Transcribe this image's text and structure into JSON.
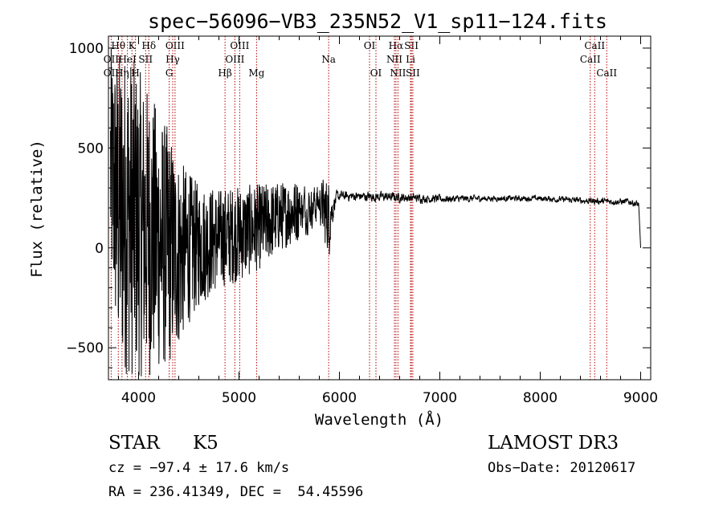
{
  "chart_data": {
    "type": "line",
    "title": "spec−56096−VB3_235N52_V1_sp11−124.fits",
    "xlabel": "Wavelength (Å)",
    "ylabel": "Flux (relative)",
    "xlim": [
      3700,
      9100
    ],
    "ylim": [
      -660,
      1060
    ],
    "x_ticks": [
      4000,
      5000,
      6000,
      7000,
      8000,
      9000
    ],
    "y_ticks": [
      -500,
      0,
      500,
      1000
    ],
    "y_tick_labels": [
      "−500",
      "0",
      "500",
      "1000"
    ],
    "grid": false,
    "series": [
      {
        "name": "flux",
        "envelope": [
          {
            "x": 3720,
            "lo": -200,
            "hi": 1000
          },
          {
            "x": 3800,
            "lo": -600,
            "hi": 1000
          },
          {
            "x": 3900,
            "lo": -650,
            "hi": 1000
          },
          {
            "x": 4000,
            "lo": -650,
            "hi": 900
          },
          {
            "x": 4100,
            "lo": -650,
            "hi": 800
          },
          {
            "x": 4200,
            "lo": -620,
            "hi": 700
          },
          {
            "x": 4300,
            "lo": -600,
            "hi": 600
          },
          {
            "x": 4400,
            "lo": -500,
            "hi": 450
          },
          {
            "x": 4500,
            "lo": -380,
            "hi": 380
          },
          {
            "x": 4600,
            "lo": -300,
            "hi": 320
          },
          {
            "x": 4800,
            "lo": -200,
            "hi": 300
          },
          {
            "x": 5000,
            "lo": -170,
            "hi": 310
          },
          {
            "x": 5200,
            "lo": -110,
            "hi": 320
          },
          {
            "x": 5400,
            "lo": -20,
            "hi": 330
          },
          {
            "x": 5600,
            "lo": 40,
            "hi": 340
          },
          {
            "x": 5800,
            "lo": 100,
            "hi": 360
          },
          {
            "x": 5900,
            "lo": -40,
            "hi": 340
          },
          {
            "x": 5950,
            "lo": 180,
            "hi": 290
          },
          {
            "x": 6000,
            "lo": 230,
            "hi": 290
          },
          {
            "x": 6500,
            "lo": 225,
            "hi": 285
          },
          {
            "x": 7000,
            "lo": 220,
            "hi": 270
          },
          {
            "x": 7500,
            "lo": 230,
            "hi": 265
          },
          {
            "x": 8000,
            "lo": 230,
            "hi": 265
          },
          {
            "x": 8500,
            "lo": 215,
            "hi": 255
          },
          {
            "x": 8900,
            "lo": 210,
            "hi": 250
          },
          {
            "x": 8980,
            "lo": 190,
            "hi": 240
          }
        ],
        "end": {
          "x": 9000,
          "y": 0
        }
      }
    ],
    "spectral_lines": [
      {
        "label": "OII",
        "x": 3727,
        "row": 2
      },
      {
        "label": "OII",
        "x": 3727,
        "row": 3
      },
      {
        "label": "Hθ",
        "x": 3798,
        "row": 1
      },
      {
        "label": "Hη",
        "x": 3835,
        "row": 3
      },
      {
        "label": "K",
        "x": 3934,
        "row": 1
      },
      {
        "label": "HeI",
        "x": 3889,
        "row": 2
      },
      {
        "label": "H",
        "x": 3969,
        "row": 3
      },
      {
        "label": "SII",
        "x": 4070,
        "row": 2
      },
      {
        "label": "Hδ",
        "x": 4102,
        "row": 1
      },
      {
        "label": "OIII",
        "x": 4363,
        "row": 1
      },
      {
        "label": "Hγ",
        "x": 4340,
        "row": 2
      },
      {
        "label": "G",
        "x": 4305,
        "row": 3
      },
      {
        "label": "Hβ",
        "x": 4861,
        "row": 3
      },
      {
        "label": "OIII",
        "x": 4959,
        "row": 2
      },
      {
        "label": "OIII",
        "x": 5007,
        "row": 1
      },
      {
        "label": "Mg",
        "x": 5175,
        "row": 3
      },
      {
        "label": "Na",
        "x": 5893,
        "row": 2
      },
      {
        "label": "OI",
        "x": 6300,
        "row": 1
      },
      {
        "label": "OI",
        "x": 6364,
        "row": 3
      },
      {
        "label": "Hα",
        "x": 6563,
        "row": 1
      },
      {
        "label": "NII",
        "x": 6548,
        "row": 2
      },
      {
        "label": "NII",
        "x": 6583,
        "row": 3
      },
      {
        "label": "SII",
        "x": 6717,
        "row": 1
      },
      {
        "label": "Li",
        "x": 6708,
        "row": 2
      },
      {
        "label": "SII",
        "x": 6731,
        "row": 3
      },
      {
        "label": "CaII",
        "x": 8542,
        "row": 1
      },
      {
        "label": "CaII",
        "x": 8498,
        "row": 2
      },
      {
        "label": "CaII",
        "x": 8662,
        "row": 3
      }
    ]
  },
  "info": {
    "object_class": "STAR",
    "subclass": "K5",
    "survey": "LAMOST DR3",
    "redshift": "cz = −97.4 ± 17.6 km/s",
    "obs_date": "Obs−Date: 20120617",
    "coords": "RA = 236.41349, DEC =  54.45596"
  }
}
